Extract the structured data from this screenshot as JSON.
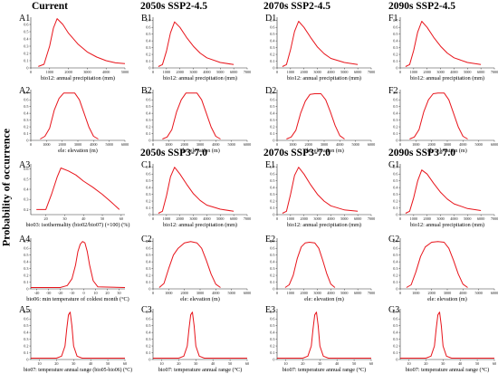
{
  "figure": {
    "y_axis_label": "Probability of occurrence",
    "headers": [
      {
        "id": "h-current",
        "text": "Current"
      },
      {
        "id": "h-2050-245",
        "text": "2050s SSP2-4.5"
      },
      {
        "id": "h-2070-245",
        "text": "2070s SSP2-4.5"
      },
      {
        "id": "h-2090-245",
        "text": "2090s SSP2-4.5"
      },
      {
        "id": "h-2050-370",
        "text": "2050s SSP3-7.0"
      },
      {
        "id": "h-2070-370",
        "text": "2070s SSP3-7.0"
      },
      {
        "id": "h-2090-370",
        "text": "2090s SSP3-7.0"
      }
    ],
    "line_color": "#e8141b",
    "axis_color": "#333333"
  },
  "chart_data": [
    {
      "panel": "A1",
      "type": "line",
      "xlabel": "bio12: annual precipitation (mm)",
      "xticks": [
        0,
        1000,
        2000,
        3000,
        4000,
        5000
      ],
      "yticks": [
        0,
        0.1,
        0.2,
        0.3,
        0.4,
        0.5,
        0.6
      ],
      "xlim": [
        0,
        5000
      ],
      "ylim": [
        0,
        0.7
      ],
      "x": [
        400,
        700,
        1000,
        1200,
        1400,
        1700,
        2000,
        2500,
        3000,
        3500,
        4000,
        4500,
        5000
      ],
      "y": [
        0.02,
        0.05,
        0.3,
        0.55,
        0.68,
        0.6,
        0.48,
        0.33,
        0.22,
        0.15,
        0.1,
        0.07,
        0.06
      ]
    },
    {
      "panel": "B1",
      "type": "line",
      "xlabel": "bio12: annual precipitation (mm)",
      "xticks": [
        0,
        1000,
        2000,
        3000,
        4000,
        5000,
        6000,
        7000
      ],
      "yticks": [
        0,
        0.1,
        0.2,
        0.3,
        0.4,
        0.5,
        0.6,
        0.7
      ],
      "xlim": [
        0,
        7000
      ],
      "ylim": [
        0,
        0.75
      ],
      "x": [
        400,
        700,
        1000,
        1300,
        1600,
        2000,
        2500,
        3000,
        3500,
        4000,
        5000,
        6000
      ],
      "y": [
        0.02,
        0.05,
        0.25,
        0.52,
        0.68,
        0.6,
        0.45,
        0.32,
        0.22,
        0.15,
        0.08,
        0.05
      ]
    },
    {
      "panel": "D1",
      "type": "line",
      "xlabel": "bio12: annual precipitation (mm)",
      "xticks": [
        0,
        1000,
        2000,
        3000,
        4000,
        5000,
        6000,
        7000
      ],
      "yticks": [
        0,
        0.1,
        0.2,
        0.3,
        0.4,
        0.5,
        0.6,
        0.7
      ],
      "xlim": [
        0,
        7000
      ],
      "ylim": [
        0,
        0.75
      ],
      "x": [
        400,
        700,
        1000,
        1300,
        1600,
        2000,
        2500,
        3000,
        3500,
        4000,
        5000,
        6000
      ],
      "y": [
        0.02,
        0.05,
        0.27,
        0.54,
        0.69,
        0.6,
        0.45,
        0.31,
        0.21,
        0.14,
        0.08,
        0.05
      ]
    },
    {
      "panel": "F1",
      "type": "line",
      "xlabel": "bio12: annual precipitation (mm)",
      "xticks": [
        0,
        1000,
        2000,
        3000,
        4000,
        5000,
        6000,
        7000
      ],
      "yticks": [
        0,
        0.1,
        0.2,
        0.3,
        0.4,
        0.5,
        0.6,
        0.7
      ],
      "xlim": [
        0,
        7000
      ],
      "ylim": [
        0,
        0.75
      ],
      "x": [
        400,
        700,
        1000,
        1300,
        1600,
        2000,
        2500,
        3000,
        3500,
        4000,
        5000,
        6000
      ],
      "y": [
        0.02,
        0.05,
        0.26,
        0.53,
        0.69,
        0.6,
        0.45,
        0.32,
        0.22,
        0.15,
        0.08,
        0.05
      ]
    },
    {
      "panel": "A2",
      "type": "line",
      "xlabel": "ele: elevation (m)",
      "xticks": [
        0,
        1000,
        2000,
        3000,
        4000,
        5000,
        6000
      ],
      "yticks": [
        0,
        0.1,
        0.2,
        0.3,
        0.4,
        0.5,
        0.6,
        0.7
      ],
      "xlim": [
        0,
        6000
      ],
      "ylim": [
        0,
        0.75
      ],
      "x": [
        600,
        900,
        1200,
        1500,
        1800,
        2100,
        2400,
        2800,
        3100,
        3400,
        3700,
        4000,
        4300
      ],
      "y": [
        0.02,
        0.06,
        0.18,
        0.45,
        0.62,
        0.7,
        0.7,
        0.7,
        0.6,
        0.4,
        0.2,
        0.06,
        0.02
      ]
    },
    {
      "panel": "B2",
      "type": "line",
      "xlabel": "ele: elevation (m)",
      "xticks": [
        0,
        1000,
        2000,
        3000,
        4000,
        5000,
        6000
      ],
      "yticks": [
        0,
        0.1,
        0.2,
        0.3,
        0.4,
        0.5,
        0.6,
        0.7
      ],
      "xlim": [
        0,
        6000
      ],
      "ylim": [
        0,
        0.75
      ],
      "x": [
        600,
        900,
        1200,
        1500,
        1800,
        2100,
        2400,
        2800,
        3100,
        3400,
        3700,
        4000,
        4300
      ],
      "y": [
        0.02,
        0.05,
        0.16,
        0.42,
        0.6,
        0.7,
        0.7,
        0.7,
        0.6,
        0.4,
        0.2,
        0.06,
        0.02
      ]
    },
    {
      "panel": "D2",
      "type": "line",
      "xlabel": "ele: elevation (m)",
      "xticks": [
        0,
        1000,
        2000,
        3000,
        4000,
        5000,
        6000
      ],
      "yticks": [
        0,
        0.1,
        0.2,
        0.3,
        0.4,
        0.5,
        0.6,
        0.7
      ],
      "xlim": [
        0,
        6000
      ],
      "ylim": [
        0,
        0.75
      ],
      "x": [
        600,
        900,
        1200,
        1500,
        1800,
        2100,
        2400,
        2800,
        3100,
        3400,
        3700,
        4000,
        4300
      ],
      "y": [
        0.02,
        0.05,
        0.15,
        0.4,
        0.58,
        0.68,
        0.69,
        0.69,
        0.6,
        0.42,
        0.22,
        0.07,
        0.02
      ]
    },
    {
      "panel": "F2",
      "type": "line",
      "xlabel": "ele: elevation (m)",
      "xticks": [
        0,
        1000,
        2000,
        3000,
        4000,
        5000,
        6000
      ],
      "yticks": [
        0,
        0.1,
        0.2,
        0.3,
        0.4,
        0.5,
        0.6,
        0.7
      ],
      "xlim": [
        0,
        6000
      ],
      "ylim": [
        0,
        0.75
      ],
      "x": [
        600,
        900,
        1200,
        1500,
        1800,
        2100,
        2400,
        2800,
        3100,
        3400,
        3700,
        4000,
        4300
      ],
      "y": [
        0.02,
        0.05,
        0.16,
        0.42,
        0.6,
        0.69,
        0.7,
        0.7,
        0.6,
        0.4,
        0.2,
        0.06,
        0.02
      ]
    },
    {
      "panel": "A3",
      "type": "line",
      "xlabel": "bio03: isothermality (bio02/bio07) (×100) (%)",
      "xticks": [
        20,
        30,
        40,
        50,
        60
      ],
      "yticks": [
        0.2,
        0.3,
        0.4,
        0.5,
        0.6
      ],
      "xlim": [
        12,
        62
      ],
      "ylim": [
        0.15,
        0.65
      ],
      "x": [
        15,
        20,
        23,
        26,
        28,
        32,
        36,
        40,
        45,
        50,
        55,
        59
      ],
      "y": [
        0.2,
        0.2,
        0.35,
        0.52,
        0.61,
        0.58,
        0.54,
        0.48,
        0.42,
        0.35,
        0.27,
        0.2
      ]
    },
    {
      "panel": "C1",
      "type": "line",
      "xlabel": "bio12: annual precipitation (mm)",
      "xticks": [
        0,
        1000,
        2000,
        3000,
        4000,
        5000,
        6000,
        7000
      ],
      "yticks": [
        0,
        0.1,
        0.2,
        0.3,
        0.4,
        0.5,
        0.6,
        0.7
      ],
      "xlim": [
        0,
        7000
      ],
      "ylim": [
        0,
        0.75
      ],
      "x": [
        400,
        700,
        1000,
        1300,
        1600,
        2000,
        2500,
        3000,
        3500,
        4000,
        5000,
        6000
      ],
      "y": [
        0.02,
        0.05,
        0.28,
        0.56,
        0.7,
        0.6,
        0.45,
        0.31,
        0.21,
        0.14,
        0.08,
        0.05
      ]
    },
    {
      "panel": "E1",
      "type": "line",
      "xlabel": "bio12: annual precipitation (mm)",
      "xticks": [
        0,
        1000,
        2000,
        3000,
        4000,
        5000,
        6000,
        7000
      ],
      "yticks": [
        0,
        0.1,
        0.2,
        0.3,
        0.4,
        0.5,
        0.6,
        0.7
      ],
      "xlim": [
        0,
        7000
      ],
      "ylim": [
        0,
        0.75
      ],
      "x": [
        400,
        700,
        1000,
        1300,
        1600,
        2000,
        2500,
        3000,
        3500,
        4000,
        5000,
        6000
      ],
      "y": [
        0.02,
        0.05,
        0.3,
        0.58,
        0.7,
        0.6,
        0.44,
        0.3,
        0.2,
        0.13,
        0.07,
        0.05
      ]
    },
    {
      "panel": "G1",
      "type": "line",
      "xlabel": "bio12: annual precipitation (mm)",
      "xticks": [
        0,
        1000,
        2000,
        3000,
        4000,
        5000,
        6000,
        7000
      ],
      "yticks": [
        0,
        0.1,
        0.2,
        0.3,
        0.4,
        0.5,
        0.6,
        0.7
      ],
      "xlim": [
        0,
        7000
      ],
      "ylim": [
        0,
        0.75
      ],
      "x": [
        400,
        700,
        1000,
        1300,
        1600,
        2000,
        2500,
        3000,
        3500,
        4000,
        5000,
        6000
      ],
      "y": [
        0.02,
        0.05,
        0.25,
        0.5,
        0.66,
        0.6,
        0.46,
        0.33,
        0.23,
        0.16,
        0.09,
        0.06
      ]
    },
    {
      "panel": "A4",
      "type": "line",
      "xlabel": "bio06: min temperature of coldest month (°C)",
      "xticks": [
        -40,
        -30,
        -20,
        -10,
        0,
        10,
        20,
        30
      ],
      "yticks": [
        0,
        0.1,
        0.2,
        0.3,
        0.4,
        0.5,
        0.6,
        0.7
      ],
      "xlim": [
        -45,
        35
      ],
      "ylim": [
        0,
        0.75
      ],
      "x": [
        -45,
        -20,
        -14,
        -10,
        -7,
        -5,
        -3,
        -1,
        1,
        3,
        5,
        8,
        12,
        35
      ],
      "y": [
        0.02,
        0.02,
        0.05,
        0.15,
        0.35,
        0.55,
        0.66,
        0.7,
        0.68,
        0.55,
        0.35,
        0.12,
        0.03,
        0.02
      ]
    },
    {
      "panel": "C2",
      "type": "line",
      "xlabel": "ele: elevation (m)",
      "xticks": [
        0,
        1000,
        2000,
        3000,
        4000,
        5000,
        6000
      ],
      "yticks": [
        0,
        0.1,
        0.2,
        0.3,
        0.4,
        0.5,
        0.6,
        0.7
      ],
      "xlim": [
        0,
        6000
      ],
      "ylim": [
        0,
        0.75
      ],
      "x": [
        400,
        700,
        1000,
        1300,
        1600,
        2000,
        2400,
        2800,
        3100,
        3400,
        3700,
        4000,
        4300
      ],
      "y": [
        0.02,
        0.08,
        0.3,
        0.5,
        0.6,
        0.68,
        0.7,
        0.68,
        0.6,
        0.42,
        0.22,
        0.07,
        0.02
      ]
    },
    {
      "panel": "E2",
      "type": "line",
      "xlabel": "ele: elevation (m)",
      "xticks": [
        0,
        1000,
        2000,
        3000,
        4000,
        5000,
        6000,
        7000
      ],
      "yticks": [
        0,
        0.1,
        0.2,
        0.3,
        0.4,
        0.5,
        0.6,
        0.7
      ],
      "xlim": [
        0,
        7000
      ],
      "ylim": [
        0,
        0.75
      ],
      "x": [
        600,
        900,
        1200,
        1500,
        1800,
        2100,
        2400,
        2800,
        3100,
        3400,
        3700,
        4000,
        4300
      ],
      "y": [
        0.02,
        0.06,
        0.2,
        0.45,
        0.62,
        0.68,
        0.69,
        0.68,
        0.6,
        0.42,
        0.22,
        0.07,
        0.02
      ]
    },
    {
      "panel": "G2",
      "type": "line",
      "xlabel": "ele: elevation (m)",
      "xticks": [
        0,
        1000,
        2000,
        3000,
        4000,
        5000,
        6000
      ],
      "yticks": [
        0,
        0.1,
        0.2,
        0.3,
        0.4,
        0.5,
        0.6,
        0.7
      ],
      "xlim": [
        0,
        6000
      ],
      "ylim": [
        0,
        0.75
      ],
      "x": [
        400,
        700,
        1000,
        1300,
        1600,
        2000,
        2400,
        2800,
        3100,
        3400,
        3700,
        4000,
        4300
      ],
      "y": [
        0.02,
        0.06,
        0.25,
        0.48,
        0.62,
        0.69,
        0.7,
        0.69,
        0.6,
        0.42,
        0.22,
        0.07,
        0.02
      ]
    },
    {
      "panel": "A5",
      "type": "line",
      "xlabel": "bio07: temperature annual range (bio05-bio06) (°C)",
      "xticks": [
        10,
        20,
        30,
        40,
        50,
        60
      ],
      "yticks": [
        0,
        0.1,
        0.2,
        0.3,
        0.4,
        0.5,
        0.6,
        0.7
      ],
      "xlim": [
        5,
        60
      ],
      "ylim": [
        0,
        0.75
      ],
      "x": [
        5,
        20,
        23,
        25,
        26,
        27,
        28,
        29,
        30,
        32,
        35,
        60
      ],
      "y": [
        0.02,
        0.02,
        0.05,
        0.2,
        0.45,
        0.66,
        0.7,
        0.5,
        0.2,
        0.05,
        0.02,
        0.02
      ]
    },
    {
      "panel": "C3",
      "type": "line",
      "xlabel": "bio07: temperature annual range (°C)",
      "xticks": [
        10,
        20,
        30,
        40,
        50,
        60
      ],
      "yticks": [
        0,
        0.1,
        0.2,
        0.3,
        0.4,
        0.5,
        0.6,
        0.7
      ],
      "xlim": [
        5,
        60
      ],
      "ylim": [
        0,
        0.75
      ],
      "x": [
        5,
        20,
        23,
        25,
        26,
        27,
        28,
        29,
        30,
        32,
        35,
        60
      ],
      "y": [
        0.02,
        0.02,
        0.05,
        0.2,
        0.45,
        0.66,
        0.7,
        0.5,
        0.2,
        0.05,
        0.02,
        0.02
      ]
    },
    {
      "panel": "E3",
      "type": "line",
      "xlabel": "bio07: temperature annual range (°C)",
      "xticks": [
        10,
        20,
        30,
        40,
        50,
        60
      ],
      "yticks": [
        0,
        0.1,
        0.2,
        0.3,
        0.4,
        0.5,
        0.6,
        0.7
      ],
      "xlim": [
        5,
        60
      ],
      "ylim": [
        0,
        0.75
      ],
      "x": [
        5,
        20,
        23,
        25,
        26,
        27,
        28,
        29,
        30,
        32,
        35,
        60
      ],
      "y": [
        0.02,
        0.02,
        0.05,
        0.2,
        0.45,
        0.66,
        0.7,
        0.5,
        0.2,
        0.05,
        0.02,
        0.02
      ]
    },
    {
      "panel": "G3",
      "type": "line",
      "xlabel": "bio07: temperature annual range (°C)",
      "xticks": [
        10,
        20,
        30,
        40,
        50,
        60
      ],
      "yticks": [
        0,
        0.1,
        0.2,
        0.3,
        0.4,
        0.5,
        0.6,
        0.7
      ],
      "xlim": [
        5,
        60
      ],
      "ylim": [
        0,
        0.75
      ],
      "x": [
        5,
        20,
        23,
        25,
        26,
        27,
        28,
        29,
        30,
        32,
        35,
        60
      ],
      "y": [
        0.02,
        0.02,
        0.05,
        0.2,
        0.45,
        0.66,
        0.7,
        0.5,
        0.2,
        0.05,
        0.02,
        0.02
      ]
    }
  ]
}
